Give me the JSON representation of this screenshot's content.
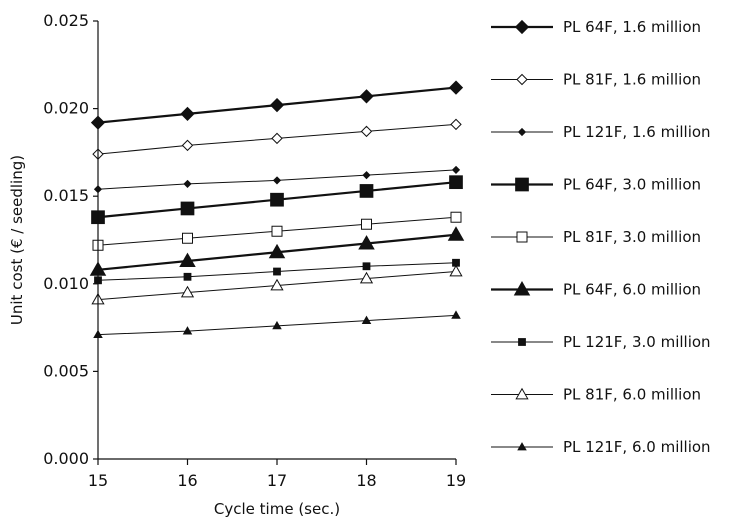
{
  "chart_data": {
    "type": "line",
    "xlabel": "Cycle time (sec.)",
    "ylabel": "Unit cost (€ / seedling)",
    "x": [
      15,
      16,
      17,
      18,
      19
    ],
    "xlim": [
      15,
      19
    ],
    "ylim": [
      0,
      0.025
    ],
    "x_ticks": [
      "15",
      "16",
      "17",
      "18",
      "19"
    ],
    "y_ticks": [
      "0.000",
      "0.005",
      "0.010",
      "0.015",
      "0.020",
      "0.025"
    ],
    "grid": false,
    "legend_position": "right",
    "series": [
      {
        "name": "PL 64F, 1.6 million",
        "marker": "diamond",
        "filled": true,
        "weight": "heavy",
        "values": [
          0.0192,
          0.0197,
          0.0202,
          0.0207,
          0.0212
        ]
      },
      {
        "name": "PL 81F, 1.6 million",
        "marker": "diamond",
        "filled": false,
        "weight": "normal",
        "values": [
          0.0174,
          0.0179,
          0.0183,
          0.0187,
          0.0191
        ]
      },
      {
        "name": "PL 121F, 1.6 million",
        "marker": "diamond",
        "filled": true,
        "weight": "small",
        "values": [
          0.0154,
          0.0157,
          0.0159,
          0.0162,
          0.0165
        ]
      },
      {
        "name": "PL 64F, 3.0 million",
        "marker": "square",
        "filled": true,
        "weight": "heavy",
        "values": [
          0.0138,
          0.0143,
          0.0148,
          0.0153,
          0.0158
        ]
      },
      {
        "name": "PL 81F, 3.0 million",
        "marker": "square",
        "filled": false,
        "weight": "normal",
        "values": [
          0.0122,
          0.0126,
          0.013,
          0.0134,
          0.0138
        ]
      },
      {
        "name": "PL 64F, 6.0 million",
        "marker": "triangle",
        "filled": true,
        "weight": "heavy",
        "values": [
          0.0108,
          0.0113,
          0.0118,
          0.0123,
          0.0128
        ]
      },
      {
        "name": "PL 121F, 3.0 million",
        "marker": "square",
        "filled": true,
        "weight": "small",
        "values": [
          0.0102,
          0.0104,
          0.0107,
          0.011,
          0.0112
        ]
      },
      {
        "name": "PL 81F, 6.0 million",
        "marker": "triangle",
        "filled": false,
        "weight": "normal",
        "values": [
          0.0091,
          0.0095,
          0.0099,
          0.0103,
          0.0107
        ]
      },
      {
        "name": "PL 121F, 6.0 million",
        "marker": "triangle",
        "filled": true,
        "weight": "small",
        "values": [
          0.0071,
          0.0073,
          0.0076,
          0.0079,
          0.0082
        ]
      }
    ]
  }
}
